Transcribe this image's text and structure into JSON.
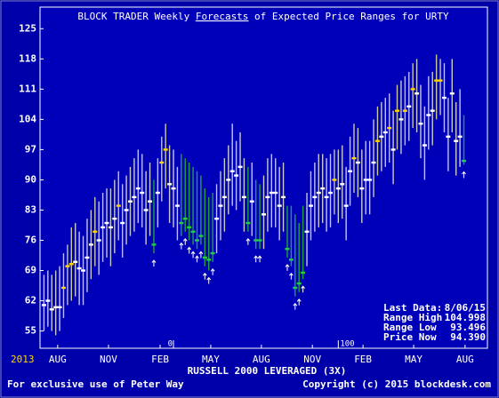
{
  "chart_data": {
    "type": "range",
    "title": [
      "BLOCK TRADER Weekly ",
      "Forecasts",
      " of Expected Price Ranges for URTY"
    ],
    "x_label": "RUSSELL 2000 LEVERAGED (3X)",
    "year_label": "2013",
    "footer_left": "For exclusive use of Peter Way",
    "footer_right": "Copyright (c) 2015 blockdesk.com",
    "info": [
      {
        "label": "Last Data:",
        "value": "8/06/15"
      },
      {
        "label": "Range High",
        "value": "104.998"
      },
      {
        "label": "Range Low",
        "value": "93.496"
      },
      {
        "label": "Price Now",
        "value": "94.390"
      }
    ],
    "markers": [
      {
        "x": 33,
        "label": "0"
      },
      {
        "x": 75,
        "label": "100"
      }
    ],
    "xlim": [
      -1,
      113
    ],
    "ylim": [
      51,
      130
    ],
    "yticks": [
      55,
      62,
      69,
      76,
      83,
      90,
      97,
      104,
      111,
      118,
      125
    ],
    "xticks": [
      {
        "value": 3.5,
        "label": "AUG"
      },
      {
        "value": 16.45,
        "label": "NOV"
      },
      {
        "value": 29.6,
        "label": "FEB"
      },
      {
        "value": 42.5,
        "label": "MAY"
      },
      {
        "value": 55.4,
        "label": "AUG"
      },
      {
        "value": 68.4,
        "label": "NOV"
      },
      {
        "value": 81.3,
        "label": "FEB"
      },
      {
        "value": 94.2,
        "label": "MAY"
      },
      {
        "value": 107.3,
        "label": "AUG"
      }
    ],
    "palette": {
      "white": "#ffffff",
      "yellow": "#ffd700",
      "green": "#22cc44"
    },
    "line_palette": {
      "white": "#c8c8d0",
      "yellow": "#c8c8a0",
      "green": "#20a040"
    },
    "prices": [
      61,
      62,
      60,
      60.5,
      60.5,
      65,
      70,
      70.5,
      71,
      69.5,
      69,
      72,
      75,
      78,
      76,
      79,
      80,
      79,
      81,
      84,
      80,
      83,
      85,
      86,
      88,
      87,
      83,
      85,
      75,
      87,
      94,
      97,
      89,
      88,
      84,
      80,
      81,
      79,
      78,
      76,
      77,
      72,
      71.5,
      73,
      81,
      84,
      86,
      90,
      92,
      91,
      93,
      86,
      80,
      85,
      76,
      76,
      82,
      86,
      87,
      87,
      84,
      86,
      74,
      71.5,
      65,
      66,
      68.5,
      78,
      84,
      86,
      87,
      88,
      86,
      87,
      90,
      88,
      89,
      84,
      92,
      95,
      94,
      88,
      90,
      90,
      94,
      99,
      100,
      101,
      102,
      97,
      106,
      104,
      106,
      107,
      111,
      110,
      103,
      98,
      105,
      106,
      113,
      113,
      109,
      100,
      110,
      99,
      100,
      94.39
    ],
    "highs": [
      68,
      69,
      68,
      69,
      70,
      73,
      75,
      79,
      80,
      78,
      77,
      81,
      83,
      86,
      85,
      87,
      88,
      88,
      90,
      92,
      89,
      91,
      93,
      95,
      97,
      96,
      92,
      94,
      90,
      95,
      100,
      103,
      98,
      97,
      93,
      96,
      95,
      94,
      93,
      92,
      91,
      88,
      86,
      87,
      89,
      92,
      95,
      98,
      103,
      99,
      101,
      95,
      93,
      94,
      90,
      89,
      91,
      95,
      96,
      95,
      93,
      94,
      84,
      84,
      82,
      80,
      84,
      87,
      92,
      94,
      96,
      96,
      95,
      96,
      97,
      97,
      98,
      93,
      100,
      103,
      102,
      97,
      99,
      99,
      104,
      107,
      108,
      109,
      110,
      106,
      112,
      113,
      114,
      115,
      117,
      118,
      112,
      107,
      114,
      115,
      119,
      118,
      117,
      109,
      118,
      108,
      111,
      104.998
    ],
    "lows": [
      55,
      56,
      55,
      54,
      55,
      58,
      61,
      62,
      63,
      61,
      61,
      64,
      67,
      70,
      68,
      71,
      72,
      70,
      73,
      76,
      72,
      75,
      77,
      78,
      80,
      79,
      75,
      77,
      73,
      79,
      85,
      88,
      80,
      79,
      76,
      77,
      78,
      76,
      75,
      74,
      75,
      70,
      69,
      71,
      73,
      76,
      78,
      82,
      84,
      83,
      85,
      78,
      78,
      77,
      74,
      74,
      74,
      78,
      79,
      79,
      76,
      78,
      72,
      70,
      63,
      64,
      67,
      70,
      76,
      78,
      79,
      80,
      78,
      79,
      82,
      80,
      81,
      76,
      84,
      87,
      86,
      80,
      82,
      82,
      86,
      91,
      92,
      93,
      94,
      89,
      97,
      96,
      98,
      99,
      102,
      101,
      95,
      90,
      97,
      98,
      104,
      105,
      101,
      92,
      101,
      91,
      93,
      93.496
    ],
    "colors": [
      "white",
      "white",
      "white",
      "white",
      "white",
      "yellow",
      "yellow",
      "yellow",
      "white",
      "white",
      "white",
      "white",
      "white",
      "yellow",
      "white",
      "white",
      "white",
      "white",
      "white",
      "yellow",
      "white",
      "white",
      "white",
      "white",
      "white",
      "white",
      "white",
      "white",
      "green",
      "white",
      "yellow",
      "yellow",
      "white",
      "white",
      "white",
      "green",
      "green",
      "green",
      "green",
      "green",
      "green",
      "green",
      "green",
      "green",
      "white",
      "white",
      "white",
      "white",
      "white",
      "white",
      "white",
      "white",
      "green",
      "white",
      "green",
      "green",
      "white",
      "white",
      "white",
      "white",
      "white",
      "white",
      "green",
      "green",
      "green",
      "green",
      "green",
      "white",
      "white",
      "white",
      "white",
      "white",
      "white",
      "white",
      "yellow",
      "white",
      "white",
      "white",
      "white",
      "yellow",
      "white",
      "white",
      "white",
      "white",
      "white",
      "yellow",
      "white",
      "white",
      "yellow",
      "white",
      "yellow",
      "white",
      "yellow",
      "white",
      "yellow",
      "white",
      "white",
      "white",
      "white",
      "white",
      "yellow",
      "yellow",
      "white",
      "white",
      "white",
      "white",
      "white",
      "green"
    ]
  }
}
